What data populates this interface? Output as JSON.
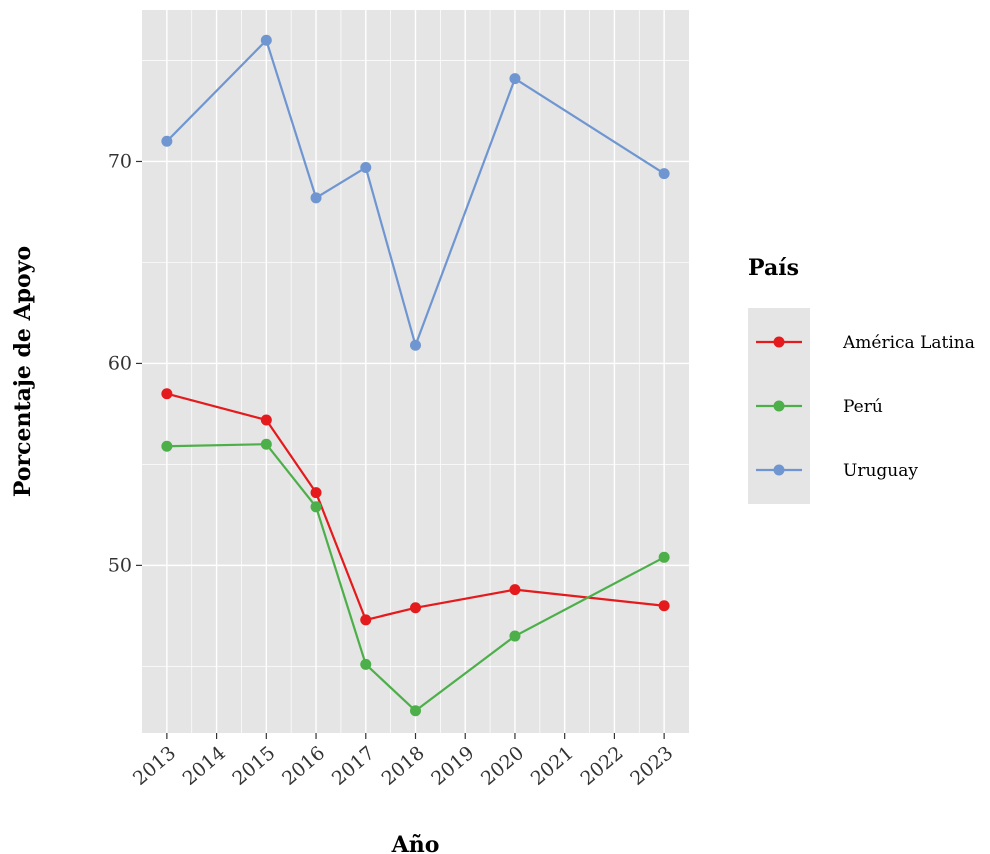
{
  "chart_data": {
    "type": "line",
    "title": "",
    "xlabel": "Año",
    "ylabel": "Porcentaje de Apoyo",
    "x": [
      2013,
      2014,
      2015,
      2016,
      2017,
      2018,
      2019,
      2020,
      2021,
      2022,
      2023
    ],
    "x_tick_labels": [
      "2013",
      "2014",
      "2015",
      "2016",
      "2017",
      "2018",
      "2019",
      "2020",
      "2021",
      "2022",
      "2023"
    ],
    "y_ticks": [
      50,
      60,
      70
    ],
    "y_tick_labels": [
      "50",
      "60",
      "70"
    ],
    "xlim": [
      2012.5,
      2023.5
    ],
    "ylim": [
      41.7,
      77.5
    ],
    "grid": true,
    "legend": {
      "title": "País",
      "placement": "right"
    },
    "series": [
      {
        "name": "América Latina",
        "color": "#E41A1C",
        "points": [
          [
            2013,
            58.5
          ],
          [
            2015,
            57.2
          ],
          [
            2016,
            53.6
          ],
          [
            2017,
            47.3
          ],
          [
            2018,
            47.9
          ],
          [
            2020,
            48.8
          ],
          [
            2023,
            48.0
          ]
        ]
      },
      {
        "name": "Perú",
        "color": "#4DAF4A",
        "points": [
          [
            2013,
            55.9
          ],
          [
            2015,
            56.0
          ],
          [
            2016,
            52.9
          ],
          [
            2017,
            45.1
          ],
          [
            2018,
            42.8
          ],
          [
            2020,
            46.5
          ],
          [
            2023,
            50.4
          ]
        ]
      },
      {
        "name": "Uruguay",
        "color": "#6F96D1",
        "points": [
          [
            2013,
            71.0
          ],
          [
            2015,
            76.0
          ],
          [
            2016,
            68.2
          ],
          [
            2017,
            69.7
          ],
          [
            2018,
            60.9
          ],
          [
            2020,
            74.1
          ],
          [
            2023,
            69.4
          ]
        ]
      }
    ]
  }
}
